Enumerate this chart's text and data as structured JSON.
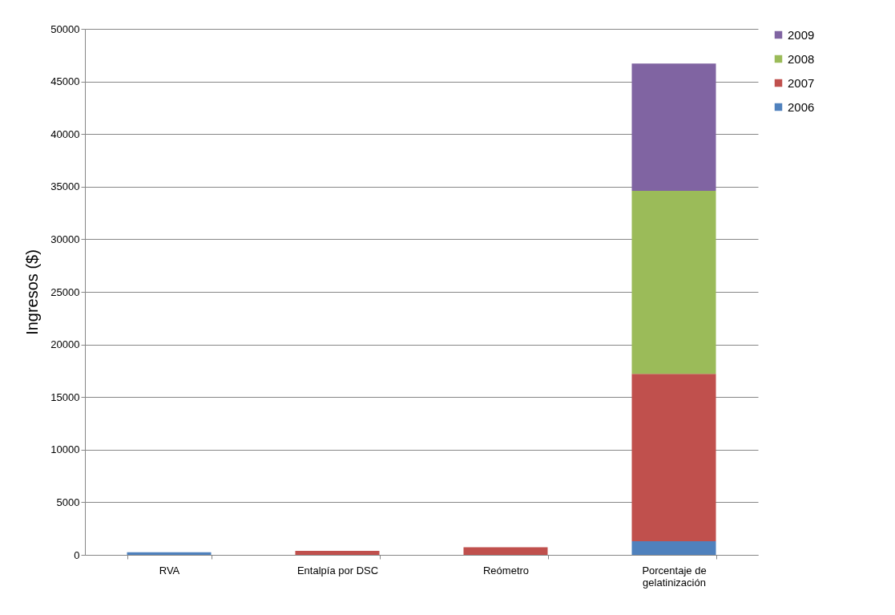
{
  "chart_data": {
    "type": "bar",
    "stacked": true,
    "ylabel": "Ingresos ($)",
    "categories": [
      "RVA",
      "Entalpía por DSC",
      "Reómetro",
      "Porcentaje de gelatinización"
    ],
    "series": [
      {
        "name": "2006",
        "color": "#4f81bd",
        "values": [
          250,
          0,
          0,
          1300
        ]
      },
      {
        "name": "2007",
        "color": "#c0504d",
        "values": [
          0,
          380,
          720,
          15900
        ]
      },
      {
        "name": "2008",
        "color": "#9bbb59",
        "values": [
          0,
          0,
          0,
          17400
        ]
      },
      {
        "name": "2009",
        "color": "#8064a2",
        "values": [
          0,
          0,
          0,
          12100
        ]
      }
    ],
    "ylim": [
      0,
      50000
    ],
    "yticks": [
      0,
      5000,
      10000,
      15000,
      20000,
      25000,
      30000,
      35000,
      40000,
      45000,
      50000
    ],
    "grid": "y",
    "legend": "right"
  }
}
